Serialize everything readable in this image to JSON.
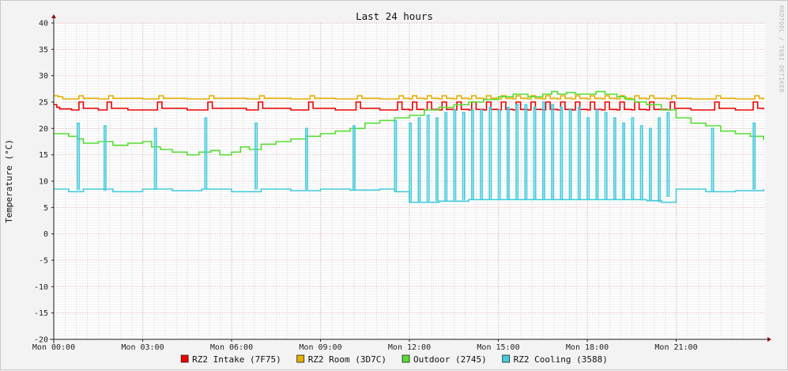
{
  "chart_data": {
    "type": "line",
    "title": "Last 24 hours",
    "ylabel": "Temperature (°C)",
    "watermark": "RRDTOOL / TOBI OETIKER",
    "ylim": [
      -20,
      40
    ],
    "yticks": [
      40,
      35,
      30,
      25,
      20,
      15,
      10,
      5,
      0,
      -5,
      -10,
      -15,
      -20
    ],
    "xlim": [
      0,
      24
    ],
    "x_tick_labels": [
      {
        "label": "Mon 00:00",
        "hour": 0
      },
      {
        "label": "Mon 03:00",
        "hour": 3
      },
      {
        "label": "Mon 06:00",
        "hour": 6
      },
      {
        "label": "Mon 09:00",
        "hour": 9
      },
      {
        "label": "Mon 12:00",
        "hour": 12
      },
      {
        "label": "Mon 15:00",
        "hour": 15
      },
      {
        "label": "Mon 18:00",
        "hour": 18
      },
      {
        "label": "Mon 21:00",
        "hour": 21
      }
    ],
    "grid": true,
    "legend_position": "bottom",
    "series": [
      {
        "name": "RZ2 Intake (7F75)",
        "color": "#ee0000",
        "x": [
          0,
          0.1,
          0.2,
          0.6,
          0.75,
          0.85,
          1.0,
          1.5,
          1.7,
          1.8,
          1.95,
          2.5,
          3.4,
          3.5,
          3.65,
          4.5,
          5.1,
          5.2,
          5.35,
          6.5,
          6.8,
          6.9,
          7.05,
          8.0,
          8.5,
          8.6,
          8.75,
          9.5,
          10.1,
          10.2,
          10.35,
          11.0,
          11.5,
          11.6,
          11.75,
          12.0,
          12.1,
          12.25,
          12.5,
          12.6,
          12.75,
          13.0,
          13.1,
          13.25,
          13.5,
          13.6,
          13.75,
          14.0,
          14.1,
          14.25,
          14.5,
          14.6,
          14.75,
          15.0,
          15.1,
          15.25,
          15.5,
          15.6,
          15.75,
          16.0,
          16.1,
          16.25,
          16.5,
          16.6,
          16.75,
          17.0,
          17.1,
          17.25,
          17.5,
          17.6,
          17.75,
          18.0,
          18.1,
          18.25,
          18.5,
          18.6,
          18.75,
          19.0,
          19.1,
          19.25,
          19.5,
          19.6,
          19.75,
          20.0,
          20.1,
          20.25,
          20.7,
          20.8,
          20.95,
          21.5,
          22.2,
          22.3,
          22.45,
          23.0,
          23.5,
          23.6,
          23.75,
          23.95
        ],
        "y": [
          24.5,
          24.0,
          23.7,
          23.5,
          23.5,
          25.0,
          23.8,
          23.5,
          23.5,
          25.0,
          23.8,
          23.5,
          23.5,
          25.0,
          23.8,
          23.5,
          23.5,
          25.0,
          23.8,
          23.5,
          23.5,
          25.0,
          23.8,
          23.5,
          23.5,
          25.0,
          23.8,
          23.5,
          23.5,
          25.0,
          23.8,
          23.5,
          23.5,
          25.0,
          23.6,
          23.5,
          25.0,
          23.6,
          23.5,
          25.0,
          23.6,
          23.5,
          25.0,
          23.6,
          23.5,
          25.0,
          23.6,
          23.5,
          25.0,
          23.6,
          23.5,
          25.0,
          23.6,
          23.5,
          25.0,
          23.6,
          23.5,
          25.0,
          23.6,
          23.5,
          25.0,
          23.6,
          23.5,
          25.0,
          23.6,
          23.5,
          25.0,
          23.6,
          23.5,
          25.0,
          23.6,
          23.5,
          25.0,
          23.6,
          23.5,
          25.0,
          23.6,
          23.5,
          25.0,
          23.6,
          23.5,
          25.0,
          23.6,
          23.5,
          25.0,
          23.6,
          23.5,
          25.0,
          23.8,
          23.5,
          23.5,
          25.0,
          23.8,
          23.5,
          23.5,
          25.0,
          23.8,
          23.6
        ]
      },
      {
        "name": "RZ2 Room (3D7C)",
        "color": "#e6b000",
        "x": [
          0,
          0.15,
          0.3,
          0.5,
          0.7,
          0.85,
          1.0,
          1.5,
          1.7,
          1.85,
          2.0,
          3.0,
          3.4,
          3.55,
          3.7,
          4.5,
          5.1,
          5.25,
          5.4,
          6.5,
          6.8,
          6.95,
          7.1,
          8.0,
          8.5,
          8.65,
          8.8,
          9.5,
          10.1,
          10.25,
          10.4,
          11.0,
          11.5,
          11.65,
          11.8,
          12.0,
          12.1,
          12.25,
          12.5,
          12.6,
          12.75,
          13.0,
          13.1,
          13.25,
          13.5,
          13.6,
          13.75,
          14.0,
          14.1,
          14.25,
          14.5,
          14.6,
          14.75,
          15.0,
          15.1,
          15.25,
          15.5,
          15.6,
          15.75,
          16.0,
          16.1,
          16.25,
          16.5,
          16.6,
          16.75,
          17.0,
          17.1,
          17.25,
          17.5,
          17.6,
          17.75,
          18.0,
          18.1,
          18.25,
          18.5,
          18.6,
          18.75,
          19.0,
          19.1,
          19.25,
          19.5,
          19.6,
          19.75,
          20.0,
          20.1,
          20.25,
          20.7,
          20.85,
          21.0,
          21.5,
          22.2,
          22.35,
          22.5,
          23.0,
          23.5,
          23.65,
          23.8,
          23.95
        ],
        "y": [
          26.2,
          26.0,
          25.6,
          25.6,
          25.6,
          26.2,
          25.7,
          25.6,
          25.6,
          26.2,
          25.7,
          25.6,
          25.6,
          26.2,
          25.7,
          25.6,
          25.6,
          26.2,
          25.7,
          25.6,
          25.6,
          26.2,
          25.7,
          25.6,
          25.6,
          26.2,
          25.7,
          25.6,
          25.6,
          26.2,
          25.7,
          25.6,
          25.6,
          26.2,
          25.7,
          25.6,
          26.2,
          25.7,
          25.6,
          26.2,
          25.7,
          25.6,
          26.2,
          25.7,
          25.6,
          26.2,
          25.7,
          25.6,
          26.2,
          25.7,
          25.6,
          26.2,
          25.7,
          25.6,
          26.2,
          25.7,
          25.6,
          26.2,
          25.7,
          25.6,
          26.2,
          25.7,
          25.6,
          26.2,
          25.7,
          25.6,
          26.2,
          25.7,
          25.6,
          26.2,
          25.7,
          25.6,
          26.2,
          25.7,
          25.6,
          26.2,
          25.7,
          25.6,
          26.2,
          25.7,
          25.6,
          26.2,
          25.7,
          25.6,
          26.2,
          25.7,
          25.6,
          26.2,
          25.7,
          25.6,
          25.6,
          26.2,
          25.7,
          25.6,
          25.6,
          26.2,
          25.7,
          25.5
        ]
      },
      {
        "name": "Outdoor (2745)",
        "color": "#55dd33",
        "x": [
          0,
          0.5,
          0.8,
          1.0,
          1.5,
          2.0,
          2.5,
          3.0,
          3.3,
          3.6,
          4.0,
          4.5,
          4.9,
          5.3,
          5.6,
          6.0,
          6.3,
          6.6,
          7.0,
          7.5,
          8.0,
          8.5,
          9.0,
          9.5,
          10.0,
          10.5,
          11.0,
          11.5,
          12.0,
          12.5,
          13.0,
          13.5,
          14.0,
          14.5,
          15.0,
          15.5,
          16.0,
          16.5,
          16.8,
          17.0,
          17.3,
          17.6,
          18.0,
          18.3,
          18.6,
          19.0,
          19.3,
          19.6,
          20.0,
          20.5,
          21.0,
          21.5,
          22.0,
          22.5,
          23.0,
          23.5,
          23.95
        ],
        "y": [
          19.0,
          18.5,
          18.0,
          17.2,
          17.5,
          16.8,
          17.2,
          17.5,
          16.5,
          16.0,
          15.5,
          15.0,
          15.5,
          15.8,
          15.0,
          15.5,
          16.5,
          16.0,
          17.0,
          17.5,
          18.0,
          18.5,
          19.0,
          19.5,
          20.0,
          21.0,
          21.5,
          22.0,
          22.5,
          23.5,
          24.0,
          24.5,
          25.0,
          25.5,
          26.0,
          26.5,
          26.0,
          26.5,
          27.0,
          26.5,
          26.8,
          26.5,
          26.5,
          27.0,
          26.5,
          26.0,
          25.5,
          25.0,
          24.5,
          23.5,
          22.0,
          21.0,
          20.5,
          19.5,
          19.0,
          18.5,
          17.8
        ]
      },
      {
        "name": "RZ2 Cooling (3588)",
        "color": "#44ccdd",
        "baseline_x": [
          0,
          0.5,
          1.0,
          2.0,
          3.0,
          4.0,
          5.0,
          6.0,
          7.0,
          8.0,
          9.0,
          10.0,
          11.0,
          11.5,
          12.0,
          13.0,
          14.0,
          15.0,
          16.0,
          17.0,
          18.0,
          19.0,
          20.0,
          20.5,
          21.0,
          22.0,
          23.0,
          23.95
        ],
        "baseline_y": [
          8.5,
          8.0,
          8.5,
          8.0,
          8.5,
          8.2,
          8.5,
          8.0,
          8.5,
          8.2,
          8.5,
          8.3,
          8.5,
          8.0,
          6.0,
          6.2,
          6.5,
          6.5,
          6.5,
          6.5,
          6.5,
          6.5,
          6.3,
          6.0,
          8.5,
          8.0,
          8.2,
          8.5
        ],
        "spike_x": [
          0.8,
          1.7,
          3.4,
          5.1,
          6.8,
          8.5,
          10.1,
          11.5,
          12.0,
          12.3,
          12.6,
          12.9,
          13.2,
          13.5,
          13.8,
          14.1,
          14.4,
          14.7,
          15.0,
          15.3,
          15.6,
          15.9,
          16.2,
          16.5,
          16.8,
          17.1,
          17.4,
          17.7,
          18.0,
          18.3,
          18.6,
          18.9,
          19.2,
          19.5,
          19.8,
          20.1,
          20.4,
          20.7,
          22.2,
          23.6
        ],
        "spike_y": [
          21.0,
          20.5,
          20.0,
          22.0,
          21.0,
          20.0,
          20.5,
          21.5,
          21.0,
          22.0,
          22.5,
          22.0,
          23.0,
          23.5,
          23.0,
          23.5,
          23.5,
          24.0,
          23.5,
          24.0,
          24.5,
          24.5,
          24.0,
          25.0,
          24.5,
          24.0,
          23.5,
          24.0,
          22.0,
          23.5,
          23.0,
          22.0,
          21.0,
          22.0,
          20.5,
          20.0,
          22.0,
          23.0,
          20.0,
          21.0
        ]
      }
    ]
  }
}
